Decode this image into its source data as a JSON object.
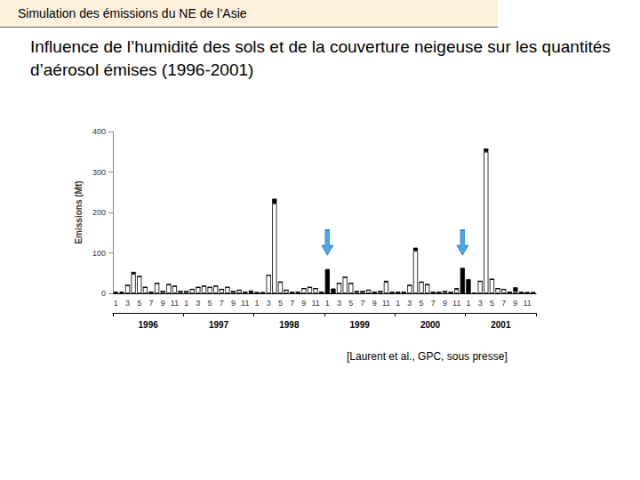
{
  "header": "Simulation des émissions du NE de l’Asie",
  "title": "Influence de l’humidité des sols et de la couverture neigeuse sur les quantités d’aérosol émises (1996-2001)",
  "citation": "[Laurent et al., GPC, sous presse]",
  "chart_data": {
    "type": "bar",
    "y_label": "Emissions (Mt)",
    "categories": [
      "1",
      null,
      "3",
      null,
      "5",
      null,
      "7",
      null,
      "9",
      null,
      "11",
      null,
      "1",
      null,
      "3",
      null,
      "5",
      null,
      "7",
      null,
      "9",
      null,
      "11",
      null,
      "1",
      null,
      "3",
      null,
      "5",
      null,
      "7",
      null,
      "9",
      null,
      "11",
      null,
      "1",
      null,
      "3",
      null,
      "5",
      null,
      "7",
      null,
      "9",
      null,
      "11",
      null,
      "1",
      null,
      "3",
      null,
      "5",
      null,
      "7",
      null,
      "9",
      null,
      "11",
      null,
      "1",
      null,
      "3",
      null,
      "5",
      null,
      "7",
      null,
      "9",
      null,
      "11",
      null
    ],
    "years": [
      "1996",
      "1997",
      "1998",
      "1999",
      "2000",
      "2001"
    ],
    "series": [
      {
        "color": "#ffffff",
        "values": [
          2,
          2,
          20,
          48,
          42,
          15,
          3,
          25,
          5,
          22,
          18,
          5,
          5,
          10,
          15,
          18,
          15,
          18,
          10,
          15,
          5,
          8,
          3,
          2,
          2,
          2,
          45,
          222,
          28,
          8,
          3,
          3,
          12,
          15,
          12,
          3,
          0,
          0,
          25,
          40,
          25,
          5,
          5,
          8,
          3,
          5,
          28,
          3,
          3,
          3,
          20,
          105,
          28,
          22,
          3,
          3,
          5,
          3,
          10,
          0,
          0,
          0,
          30,
          350,
          35,
          12,
          10,
          3,
          5,
          3,
          2,
          2
        ]
      },
      {
        "color": "#000000",
        "values": [
          2,
          2,
          0,
          5,
          0,
          0,
          0,
          0,
          0,
          0,
          0,
          0,
          0,
          0,
          0,
          0,
          0,
          0,
          0,
          0,
          0,
          0,
          0,
          5,
          0,
          0,
          0,
          12,
          0,
          0,
          0,
          0,
          0,
          0,
          0,
          0,
          60,
          12,
          0,
          0,
          0,
          0,
          0,
          0,
          0,
          0,
          3,
          0,
          0,
          0,
          0,
          8,
          0,
          0,
          0,
          0,
          0,
          0,
          3,
          63,
          35,
          0,
          0,
          8,
          0,
          0,
          0,
          0,
          10,
          0,
          0,
          0
        ]
      }
    ],
    "stacked": true,
    "ylim": [
      0,
      400
    ],
    "yticks": [
      0,
      100,
      200,
      300,
      400
    ],
    "grid": false,
    "arrows": [
      {
        "index": 36,
        "value": 95,
        "color": "#4da6e8"
      },
      {
        "index": 59,
        "value": 95,
        "color": "#4da6e8"
      }
    ]
  }
}
